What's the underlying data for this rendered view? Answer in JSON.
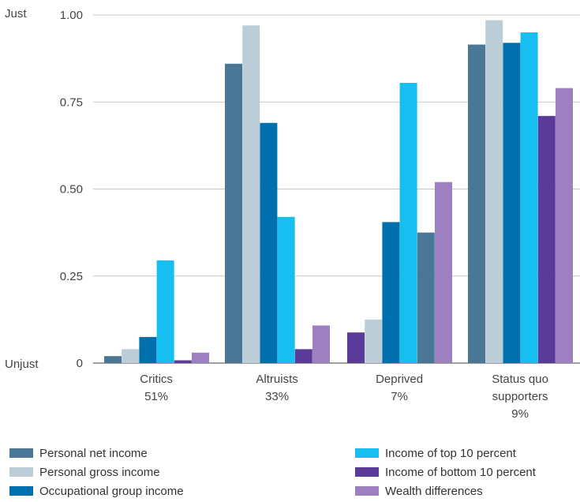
{
  "chart_data": {
    "type": "bar",
    "y_top_label": "Just",
    "y_bottom_label": "Unjust",
    "ylim": [
      0,
      1
    ],
    "yticks": [
      {
        "value": 0,
        "label": "0"
      },
      {
        "value": 0.25,
        "label": "0.25"
      },
      {
        "value": 0.5,
        "label": "0.50"
      },
      {
        "value": 0.75,
        "label": "0.75"
      },
      {
        "value": 1,
        "label": "1.00"
      }
    ],
    "grid": true,
    "legend_placement": "bottom",
    "categories": [
      {
        "name": "Critics",
        "share": "51%"
      },
      {
        "name": "Altruists",
        "share": "33%"
      },
      {
        "name": "Deprived",
        "share": "7%"
      },
      {
        "name": "Status quo supporters",
        "name_lines": [
          "Status quo",
          "supporters"
        ],
        "share": "9%"
      }
    ],
    "series": [
      {
        "name": "Personal net income",
        "color": "#4b7796",
        "values": [
          0.02,
          0.86,
          0.375,
          0.915
        ]
      },
      {
        "name": "Personal gross income",
        "color": "#bccdd8",
        "values": [
          0.04,
          0.97,
          0.125,
          0.985
        ]
      },
      {
        "name": "Occupational group income",
        "color": "#006fad",
        "values": [
          0.075,
          0.69,
          0.405,
          0.92
        ]
      },
      {
        "name": "Income of top 10 percent",
        "color": "#16bff0",
        "values": [
          0.295,
          0.42,
          0.805,
          0.95
        ]
      },
      {
        "name": "Income of bottom 10 percent",
        "color": "#5b3b9a",
        "values": [
          0.008,
          0.04,
          0.088,
          0.71
        ]
      },
      {
        "name": "Wealth differences",
        "color": "#9e80c0",
        "values": [
          0.03,
          0.108,
          0.52,
          0.79
        ]
      }
    ],
    "bar_order": [
      [
        "Personal net income",
        "Personal gross income",
        "Occupational group income",
        "Income of top 10 percent",
        "Income of bottom 10 percent",
        "Wealth differences"
      ],
      [
        "Personal net income",
        "Personal gross income",
        "Occupational group income",
        "Income of top 10 percent",
        "Income of bottom 10 percent",
        "Wealth differences"
      ],
      [
        "Income of bottom 10 percent",
        "Personal gross income",
        "Occupational group income",
        "Income of top 10 percent",
        "Personal net income",
        "Wealth differences"
      ],
      [
        "Personal net income",
        "Personal gross income",
        "Occupational group income",
        "Income of top 10 percent",
        "Income of bottom 10 percent",
        "Wealth differences"
      ]
    ]
  },
  "legend": {
    "left": [
      "Personal net income",
      "Personal gross income",
      "Occupational group income"
    ],
    "right": [
      "Income of top 10 percent",
      "Income of bottom 10 percent",
      "Wealth differences"
    ]
  }
}
